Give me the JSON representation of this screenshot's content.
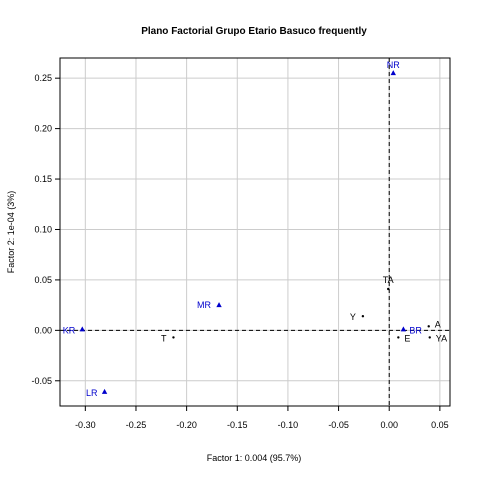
{
  "chart_data": {
    "type": "scatter",
    "title": "Plano Factorial Grupo Etario Basuco frequently",
    "xlabel": "Factor 1: 0.004 (95.7%)",
    "ylabel": "Factor 2: 1e-04 (3%)",
    "xlim": [
      -0.325,
      0.06
    ],
    "ylim": [
      -0.075,
      0.27
    ],
    "x_ticks": [
      -0.3,
      -0.25,
      -0.2,
      -0.15,
      -0.1,
      -0.05,
      0.0,
      0.05
    ],
    "x_tick_labels": [
      "-0.30",
      "-0.25",
      "-0.20",
      "-0.15",
      "-0.10",
      "-0.05",
      "0.00",
      "0.05"
    ],
    "y_ticks": [
      -0.05,
      0.0,
      0.05,
      0.1,
      0.15,
      0.2,
      0.25
    ],
    "y_tick_labels": [
      "-0.05",
      "0.00",
      "0.05",
      "0.10",
      "0.15",
      "0.20",
      "0.25"
    ],
    "grid": true,
    "reference_lines": {
      "x": 0,
      "y": 0,
      "style": "dashed"
    },
    "colors": {
      "row_points": "#0000cc",
      "col_points": "#000000",
      "grid": "#cccccc"
    },
    "row_points": [
      {
        "label": "NR",
        "x": 0.004,
        "y": 0.255
      },
      {
        "label": "MR",
        "x": -0.168,
        "y": 0.025
      },
      {
        "label": "KR",
        "x": -0.303,
        "y": 0.001
      },
      {
        "label": "LR",
        "x": -0.281,
        "y": -0.061
      },
      {
        "label": "BR",
        "x": 0.014,
        "y": 0.001
      }
    ],
    "col_points": [
      {
        "label": "TA",
        "x": -0.001,
        "y": 0.041
      },
      {
        "label": "Y",
        "x": -0.026,
        "y": 0.014
      },
      {
        "label": "T",
        "x": -0.213,
        "y": -0.007
      },
      {
        "label": "A",
        "x": 0.039,
        "y": 0.004
      },
      {
        "label": "E",
        "x": 0.009,
        "y": -0.007
      },
      {
        "label": "YA",
        "x": 0.04,
        "y": -0.007
      }
    ]
  }
}
